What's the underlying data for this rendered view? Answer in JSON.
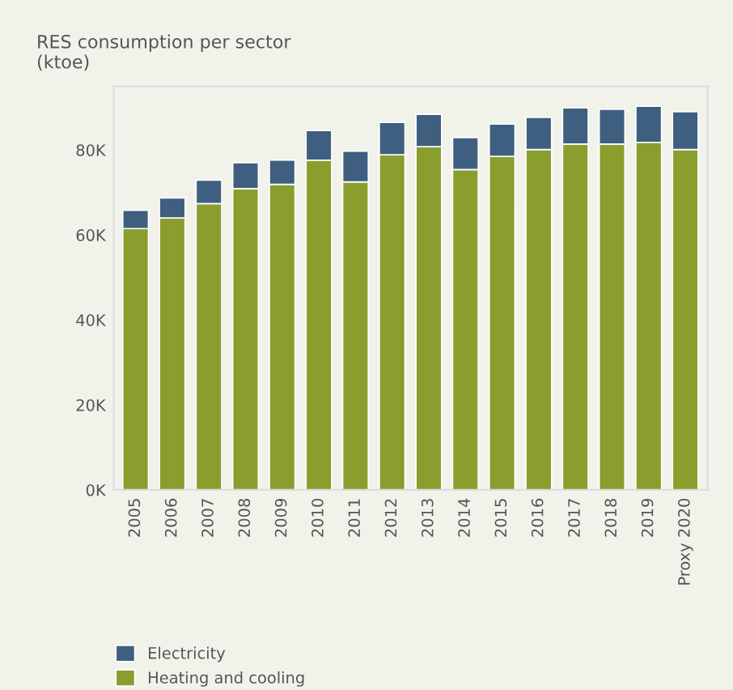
{
  "chart_data": {
    "type": "bar",
    "title": "RES consumption per sector\n(ktoe)",
    "stacked": true,
    "categories": [
      "2005",
      "2006",
      "2007",
      "2008",
      "2009",
      "2010",
      "2011",
      "2012",
      "2013",
      "2014",
      "2015",
      "2016",
      "2017",
      "2018",
      "2019",
      "Proxy 2020"
    ],
    "series": [
      {
        "name": "Heating and cooling",
        "color": "#8a9e2e",
        "values": [
          61500,
          64000,
          67400,
          70900,
          71900,
          77600,
          72500,
          78900,
          80800,
          75400,
          78500,
          80100,
          81400,
          81400,
          81800,
          80100
        ]
      },
      {
        "name": "Electricity",
        "color": "#3f5f80",
        "values": [
          4300,
          4700,
          5500,
          6100,
          5700,
          7000,
          7200,
          7600,
          7600,
          7500,
          7600,
          7600,
          8500,
          8200,
          8500,
          8900
        ]
      }
    ],
    "ylim": [
      0,
      95000
    ],
    "yticks": [
      {
        "value": 0,
        "label": "0K"
      },
      {
        "value": 20000,
        "label": "20K"
      },
      {
        "value": 40000,
        "label": "40K"
      },
      {
        "value": 60000,
        "label": "60K"
      },
      {
        "value": 80000,
        "label": "80K"
      }
    ],
    "legend": "bottom left"
  }
}
